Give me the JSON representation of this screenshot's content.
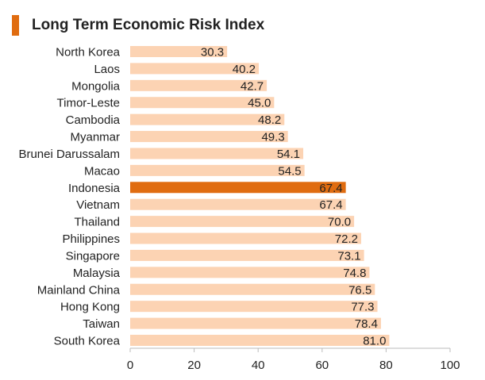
{
  "title": "Long Term Economic Risk Index",
  "colors": {
    "bar": "#fcd3b3",
    "highlight": "#e06c10",
    "accent": "#e06c10",
    "axis": "#bbbbbb",
    "text": "#222222"
  },
  "chart_data": {
    "type": "bar",
    "orientation": "horizontal",
    "title": "Long Term Economic Risk Index",
    "xlabel": "",
    "ylabel": "",
    "xlim": [
      0,
      100
    ],
    "ticks": [
      0,
      20,
      40,
      60,
      80,
      100
    ],
    "grid": false,
    "highlight": "Indonesia",
    "categories": [
      "North Korea",
      "Laos",
      "Mongolia",
      "Timor-Leste",
      "Cambodia",
      "Myanmar",
      "Brunei Darussalam",
      "Macao",
      "Indonesia",
      "Vietnam",
      "Thailand",
      "Philippines",
      "Singapore",
      "Malaysia",
      "Mainland China",
      "Hong Kong",
      "Taiwan",
      "South Korea"
    ],
    "values": [
      30.3,
      40.2,
      42.7,
      45.0,
      48.2,
      49.3,
      54.1,
      54.5,
      67.4,
      67.4,
      70.0,
      72.2,
      73.1,
      74.8,
      76.5,
      77.3,
      78.4,
      81.0
    ],
    "value_labels": [
      "30.3",
      "40.2",
      "42.7",
      "45.0",
      "48.2",
      "49.3",
      "54.1",
      "54.5",
      "67.4",
      "67.4",
      "70.0",
      "72.2",
      "73.1",
      "74.8",
      "76.5",
      "77.3",
      "78.4",
      "81.0"
    ]
  }
}
